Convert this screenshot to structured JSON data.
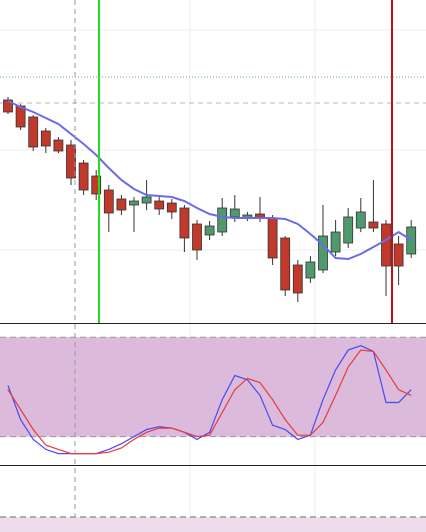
{
  "chart_data": [
    {
      "type": "candlestick",
      "categories": [
        null,
        null,
        null,
        null,
        null,
        null,
        null,
        null,
        null,
        null,
        null,
        null,
        null,
        null,
        null,
        null,
        null,
        null,
        null,
        null,
        null,
        null,
        null,
        null,
        null,
        null,
        null,
        null,
        null,
        null,
        null,
        null,
        null
      ],
      "open": [
        223,
        217,
        206,
        192,
        183,
        178,
        160,
        147,
        133,
        124,
        118,
        120,
        122,
        120,
        115,
        99,
        88,
        91,
        106,
        105,
        109,
        105,
        85,
        58,
        45,
        53,
        71,
        80,
        95,
        101,
        99,
        79,
        69
      ],
      "high": [
        226,
        219,
        208,
        195,
        186,
        183,
        163,
        153,
        138,
        128,
        126,
        143,
        128,
        124,
        118,
        103,
        102,
        125,
        128,
        111,
        126,
        108,
        87,
        63,
        67,
        118,
        103,
        115,
        125,
        143,
        103,
        87,
        103
      ],
      "low": [
        209,
        193,
        172,
        170,
        170,
        138,
        128,
        123,
        91,
        108,
        91,
        113,
        108,
        104,
        71,
        63,
        83,
        87,
        101,
        102,
        101,
        58,
        27,
        21,
        40,
        50,
        67,
        75,
        91,
        91,
        27,
        38,
        65
      ],
      "close": [
        211,
        196,
        176,
        177,
        172,
        145,
        133,
        129,
        110,
        113,
        122,
        126,
        114,
        111,
        85,
        73,
        97,
        115,
        114,
        108,
        105,
        65,
        33,
        30,
        61,
        87,
        91,
        106,
        111,
        95,
        57,
        57,
        96
      ],
      "up_color": "#4f9a6c",
      "down_color": "#c0392b",
      "ma": {
        "color": "#6b6bea",
        "values": [
          222,
          216,
          211,
          205,
          199,
          189,
          179,
          168,
          155,
          143,
          134,
          128,
          127,
          126,
          122,
          115,
          109,
          106,
          105,
          105,
          105,
          105,
          104,
          99,
          89,
          78,
          65,
          64,
          69,
          76,
          83,
          91,
          83
        ]
      },
      "ylim": [
        0,
        323
      ]
    },
    {
      "type": "line",
      "categories": [
        null,
        null,
        null,
        null,
        null,
        null,
        null,
        null,
        null,
        null,
        null,
        null,
        null,
        null,
        null,
        null,
        null,
        null,
        null,
        null,
        null,
        null,
        null,
        null,
        null,
        null,
        null,
        null,
        null,
        null,
        null,
        null,
        null
      ],
      "series": [
        {
          "color": "#4a4af0",
          "values": [
            56,
            32,
            18,
            11,
            8,
            8,
            8,
            8,
            11,
            15,
            20,
            25,
            27,
            26,
            23,
            18,
            23,
            46,
            63,
            60,
            49,
            28,
            25,
            18,
            21,
            46,
            67,
            81,
            84,
            80,
            44,
            44,
            53
          ]
        },
        {
          "color": "#e83a3a",
          "values": [
            53,
            39,
            25,
            14,
            11,
            8,
            8,
            8,
            9,
            12,
            18,
            23,
            26,
            26,
            23,
            20,
            21,
            37,
            53,
            61,
            58,
            46,
            32,
            21,
            21,
            30,
            49,
            69,
            81,
            80,
            67,
            53,
            49
          ]
        }
      ],
      "band": [
        20,
        90
      ],
      "band_color": "#dcbadc",
      "ylim": [
        0,
        100
      ]
    }
  ]
}
